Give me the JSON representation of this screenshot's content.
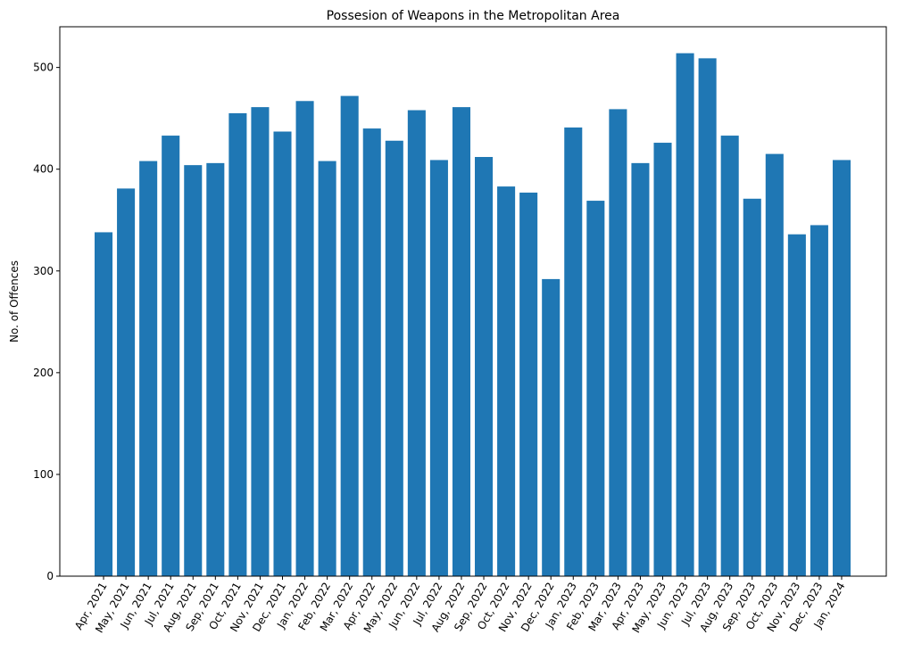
{
  "chart_data": {
    "type": "bar",
    "title": "Possesion of Weapons in the Metropolitan Area",
    "xlabel": "",
    "ylabel": "No. of Offences",
    "categories": [
      "Apr, 2021",
      "May, 2021",
      "Jun, 2021",
      "Jul, 2021",
      "Aug, 2021",
      "Sep, 2021",
      "Oct, 2021",
      "Nov, 2021",
      "Dec, 2021",
      "Jan, 2022",
      "Feb, 2022",
      "Mar, 2022",
      "Apr, 2022",
      "May, 2022",
      "Jun, 2022",
      "Jul, 2022",
      "Aug, 2022",
      "Sep, 2022",
      "Oct, 2022",
      "Nov, 2022",
      "Dec, 2022",
      "Jan, 2023",
      "Feb, 2023",
      "Mar, 2023",
      "Apr, 2023",
      "May, 2023",
      "Jun, 2023",
      "Jul, 2023",
      "Aug, 2023",
      "Sep, 2023",
      "Oct, 2023",
      "Nov, 2023",
      "Dec, 2023",
      "Jan, 2024"
    ],
    "values": [
      338,
      381,
      408,
      433,
      404,
      406,
      455,
      461,
      437,
      467,
      408,
      472,
      440,
      428,
      458,
      409,
      461,
      412,
      383,
      377,
      292,
      441,
      369,
      459,
      406,
      426,
      514,
      509,
      433,
      371,
      415,
      336,
      345,
      409
    ],
    "ylim": [
      0,
      540
    ],
    "yticks": [
      0,
      100,
      200,
      300,
      400,
      500
    ],
    "bar_color": "#1f77b4",
    "grid": false,
    "legend": "none"
  }
}
